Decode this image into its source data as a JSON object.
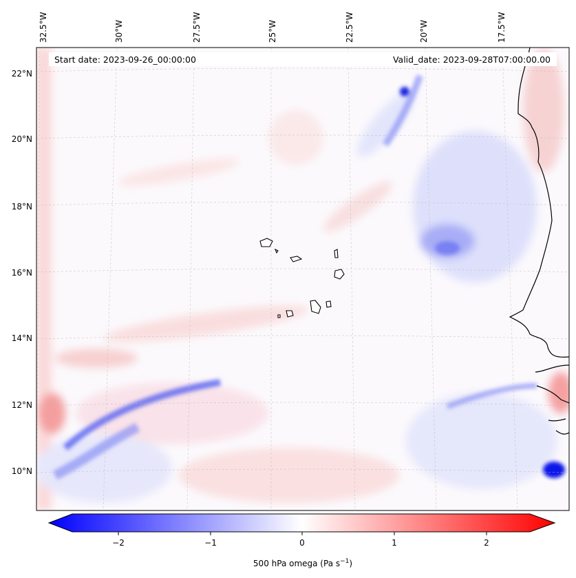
{
  "header": {
    "start_date": "Start date: 2023-09-26_00:00:00",
    "valid_date": "Valid_date: 2023-09-28T07:00:00.00"
  },
  "map": {
    "lon_labels": [
      "32.5°W",
      "30°W",
      "27.5°W",
      "25°W",
      "22.5°W",
      "20°W",
      "17.5°W"
    ],
    "lat_labels": [
      "22°N",
      "20°N",
      "18°N",
      "16°N",
      "14°N",
      "12°N",
      "10°N"
    ],
    "field": "500 hPa omega",
    "colormap": "bwr",
    "colors": {
      "negative": "#0000ff",
      "zero": "#ffffff",
      "positive": "#ff0000",
      "coast": "#000000",
      "grid": "#cccccc"
    }
  },
  "colorbar": {
    "ticks": [
      "−2",
      "−1",
      "0",
      "1",
      "2"
    ],
    "tick_values": [
      -2,
      -1,
      0,
      1,
      2
    ],
    "range": [
      -2.5,
      2.5
    ],
    "label_main": "500 hPa omega (Pa s",
    "label_sup": "−1",
    "label_close": ")"
  }
}
